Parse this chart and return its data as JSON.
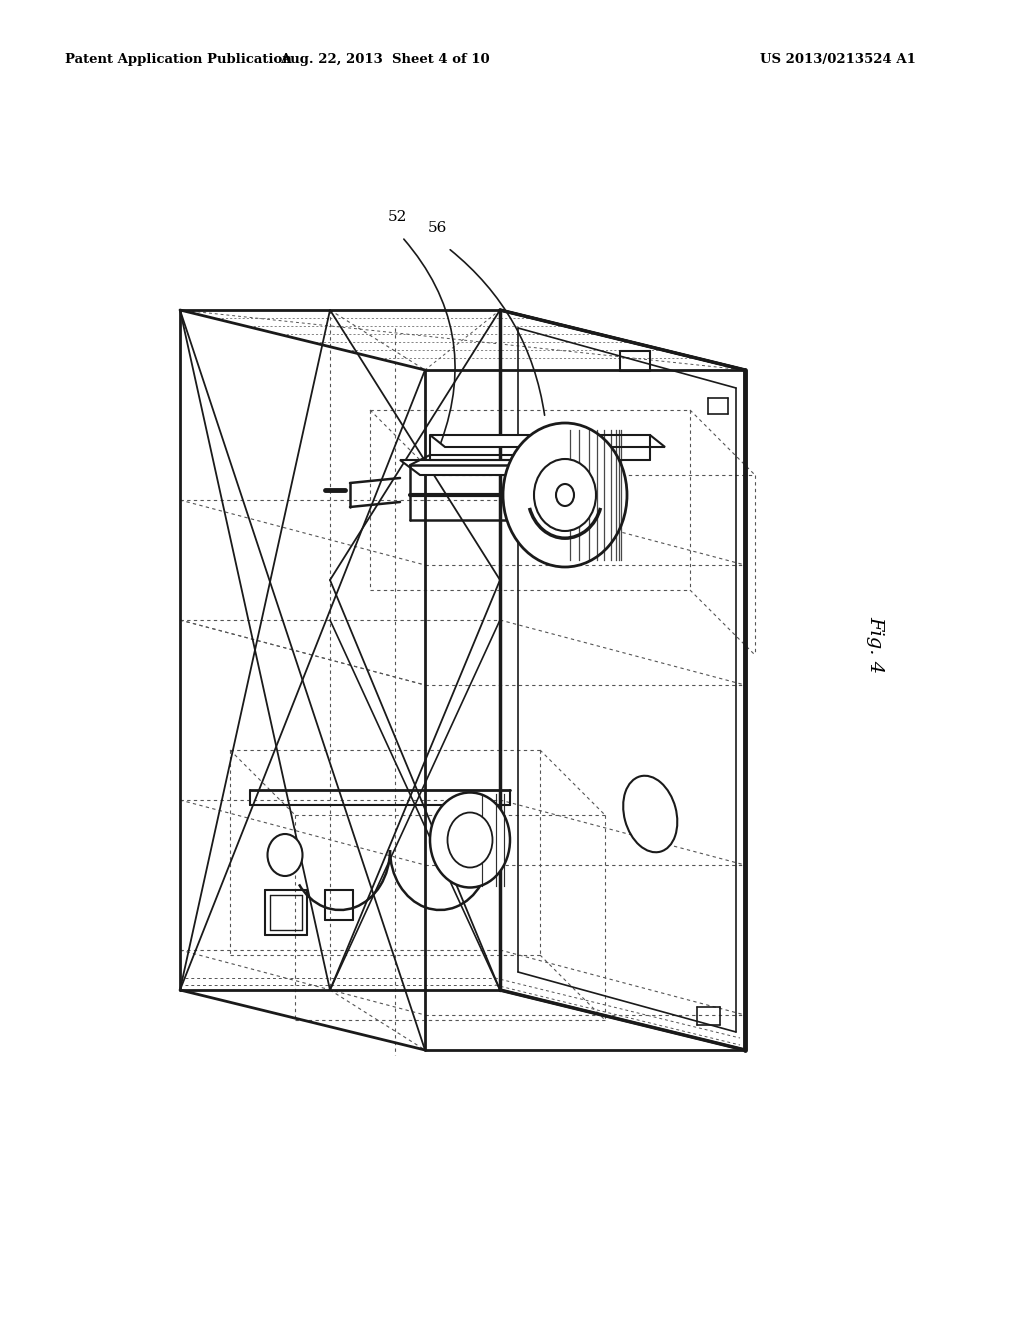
{
  "background_color": "#ffffff",
  "header_left": "Patent Application Publication",
  "header_center": "Aug. 22, 2013  Sheet 4 of 10",
  "header_right": "US 2013/0213524 A1",
  "fig_label": "Fig. 4",
  "line_color": "#1a1a1a",
  "dashed_color": "#555555"
}
